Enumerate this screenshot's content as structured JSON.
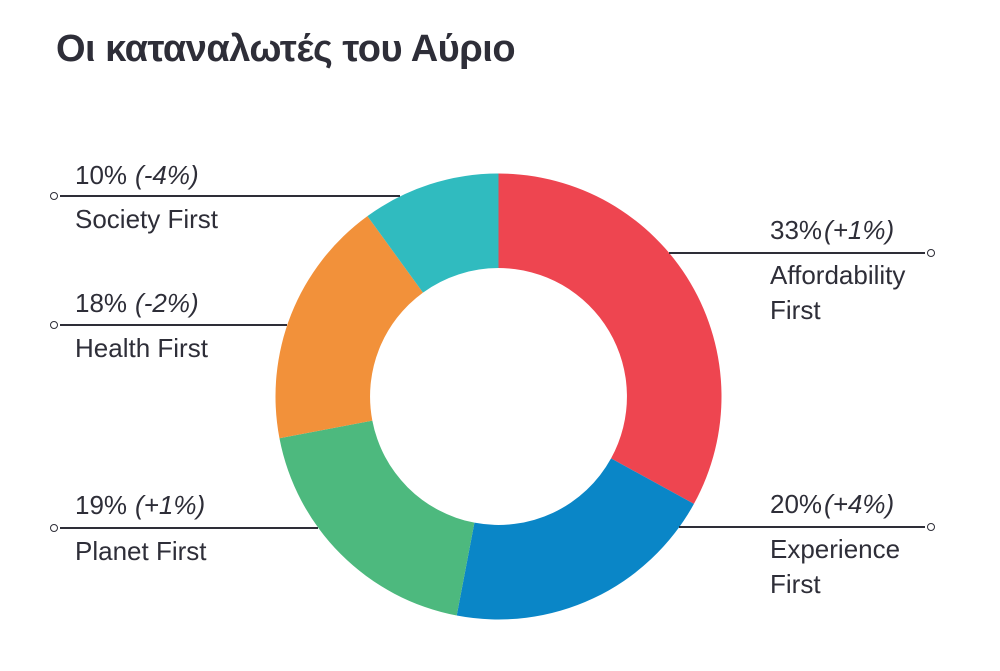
{
  "title": "Οι καταναλωτές του Αύριο",
  "colors": {
    "text": "#2e2e38",
    "background": "#ffffff",
    "affordability_red": "#ee4550",
    "experience_blue": "#0a86c7",
    "planet_green": "#4db97e",
    "health_orange": "#f2913a",
    "society_teal": "#30bbbf"
  },
  "chart_data": {
    "type": "pie",
    "subtype": "donut",
    "title": "Οι καταναλωτές του Αύριο",
    "start_angle_deg": 0,
    "direction": "clockwise",
    "hole_ratio": 0.576,
    "legend_position": "callouts",
    "categories": [
      "Affordability First",
      "Experience First",
      "Planet First",
      "Health First",
      "Society First"
    ],
    "values": [
      33,
      20,
      19,
      18,
      10
    ],
    "changes": [
      "+1%",
      "+4%",
      "+1%",
      "-2%",
      "-4%"
    ],
    "segments": [
      {
        "id": "affordability-first",
        "label": "Affordability First",
        "value": 33,
        "change": "+1%",
        "color": "#ee4550"
      },
      {
        "id": "experience-first",
        "label": "Experience First",
        "value": 20,
        "change": "+4%",
        "color": "#0a86c7"
      },
      {
        "id": "planet-first",
        "label": "Planet First",
        "value": 19,
        "change": "+1%",
        "color": "#4db97e"
      },
      {
        "id": "health-first",
        "label": "Health First",
        "value": 18,
        "change": "-2%",
        "color": "#f2913a"
      },
      {
        "id": "society-first",
        "label": "Society First",
        "value": 10,
        "change": "-4%",
        "color": "#30bbbf"
      }
    ]
  },
  "callouts": {
    "society": {
      "pct": "10%",
      "delta": "(-4%)",
      "name": "Society First"
    },
    "health": {
      "pct": "18%",
      "delta": "(-2%)",
      "name": "Health First"
    },
    "planet": {
      "pct": "19%",
      "delta": "(+1%)",
      "name": "Planet First"
    },
    "affordability": {
      "pct": "33%",
      "delta": "(+1%)",
      "name": "Affordability First"
    },
    "experience": {
      "pct": "20%",
      "delta": "(+4%)",
      "name": "Experience First"
    }
  }
}
